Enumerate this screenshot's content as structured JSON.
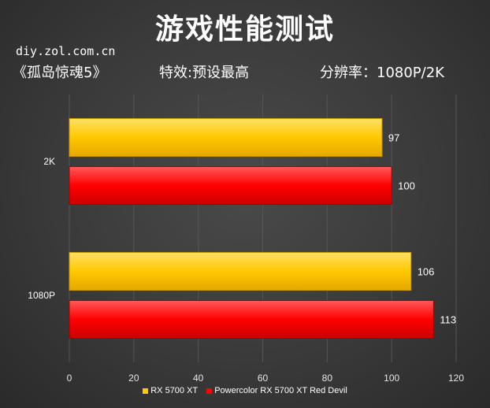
{
  "header": {
    "title": "游戏性能测试",
    "source": "diy.zol.com.cn",
    "game": "《孤岛惊魂5》",
    "effect": "特效:预设最高",
    "resolution": "分辨率：1080P/2K"
  },
  "colors": {
    "yellow": "#ffc800",
    "red": "#ff0000",
    "grid": "#555555"
  },
  "chart_data": {
    "type": "bar",
    "orientation": "horizontal",
    "categories": [
      "2K",
      "1080P"
    ],
    "series": [
      {
        "name": "RX 5700 XT",
        "values": [
          97,
          106
        ]
      },
      {
        "name": "Powercolor RX 5700 XT Red Devil",
        "values": [
          100,
          113
        ]
      }
    ],
    "xlim": [
      0,
      120
    ],
    "xticks": [
      0,
      20,
      40,
      60,
      80,
      100,
      120
    ],
    "grid": true,
    "legend": "bottom"
  }
}
